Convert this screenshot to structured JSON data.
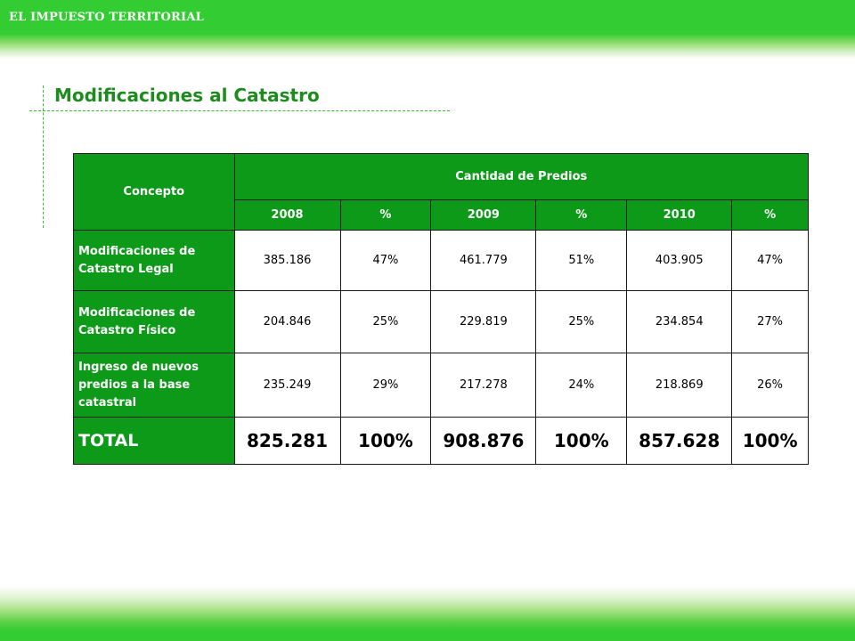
{
  "header": {
    "title": "EL IMPUESTO TERRITORIAL"
  },
  "page": {
    "title": "Modificaciones al Catastro"
  },
  "table": {
    "concept_header": "Concepto",
    "group_header": "Cantidad de Predios",
    "columns": [
      "2008",
      "%",
      "2009",
      "%",
      "2010",
      "%"
    ],
    "rows": [
      {
        "label": "Modificaciones de Catastro Legal",
        "values": [
          "385.186",
          "47%",
          "461.779",
          "51%",
          "403.905",
          "47%"
        ]
      },
      {
        "label": "Modificaciones de Catastro Físico",
        "values": [
          "204.846",
          "25%",
          "229.819",
          "25%",
          "234.854",
          "27%"
        ]
      },
      {
        "label": "Ingreso de nuevos predios a la base catastral",
        "values": [
          "235.249",
          "29%",
          "217.278",
          "24%",
          "218.869",
          "26%"
        ]
      }
    ],
    "total": {
      "label": "TOTAL",
      "values": [
        "825.281",
        "100%",
        "908.876",
        "100%",
        "857.628",
        "100%"
      ]
    }
  },
  "colors": {
    "green_band": "#33cc33",
    "table_green": "#0c9a18",
    "title_green": "#1e8b1e"
  }
}
